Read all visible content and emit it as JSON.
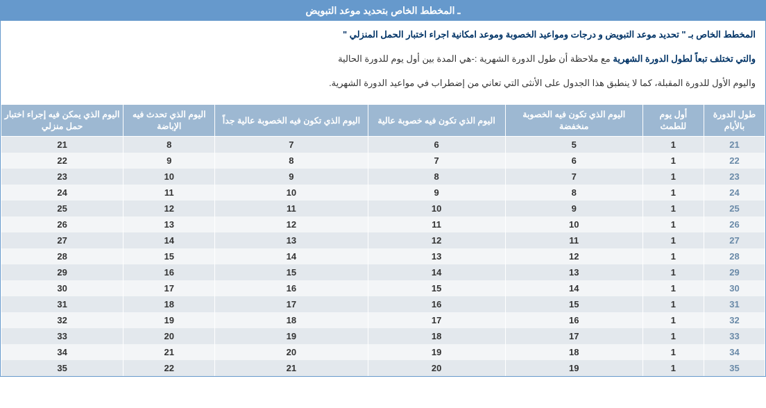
{
  "title": "ـ المخطط الخاص بتحديد موعد التبويض",
  "desc": {
    "p1_bold": "المخطط الخاص بـ \" تحديد موعد التبويض و درجات ومواعيد الخصوبة وموعد امكانية اجراء اختبار الحمل المنزلي \"",
    "p2_bold": "والتي تختلف تبعاً لطول الدورة الشهرية",
    "p2_plain": " مع ملاحظة أن طول الدورة الشهرية :-هي المدة بين أول يوم للدورة الحالية",
    "p3_plain": "واليوم الأول للدورة المقبلة، كما لا ينطبق هذا الجدول على الأنثى التي تعاني من إضطراب في مواعيد الدورة الشهرية."
  },
  "headers": [
    "طول الدورة بالأيام",
    "أول يوم للطمث",
    "اليوم الذي تكون فيه الخصوبة منخفضة",
    "اليوم الذي تكون فيه خصوبة عالية",
    "اليوم الذي تكون فيه الخصوبة عالية جداً",
    "اليوم الذي تحدث فيه الإباضة",
    "اليوم الذي يمكن فيه إجراء اختبار حمل منزلي"
  ],
  "rows": [
    [
      "21",
      "1",
      "5",
      "6",
      "7",
      "8",
      "21"
    ],
    [
      "22",
      "1",
      "6",
      "7",
      "8",
      "9",
      "22"
    ],
    [
      "23",
      "1",
      "7",
      "8",
      "9",
      "10",
      "23"
    ],
    [
      "24",
      "1",
      "8",
      "9",
      "10",
      "11",
      "24"
    ],
    [
      "25",
      "1",
      "9",
      "10",
      "11",
      "12",
      "25"
    ],
    [
      "26",
      "1",
      "10",
      "11",
      "12",
      "13",
      "26"
    ],
    [
      "27",
      "1",
      "11",
      "12",
      "13",
      "14",
      "27"
    ],
    [
      "28",
      "1",
      "12",
      "13",
      "14",
      "15",
      "28"
    ],
    [
      "29",
      "1",
      "13",
      "14",
      "15",
      "16",
      "29"
    ],
    [
      "30",
      "1",
      "14",
      "15",
      "16",
      "17",
      "30"
    ],
    [
      "31",
      "1",
      "15",
      "16",
      "17",
      "18",
      "31"
    ],
    [
      "32",
      "1",
      "16",
      "17",
      "18",
      "19",
      "32"
    ],
    [
      "33",
      "1",
      "17",
      "18",
      "19",
      "20",
      "33"
    ],
    [
      "34",
      "1",
      "18",
      "19",
      "20",
      "21",
      "34"
    ],
    [
      "35",
      "1",
      "19",
      "20",
      "21",
      "22",
      "35"
    ]
  ],
  "style": {
    "title_bg": "#6699cc",
    "title_color": "#ffffff",
    "header_bg": "#9db8d2",
    "header_color": "#ffffff",
    "row_odd_bg": "#e3e8ed",
    "row_even_bg": "#f3f5f7",
    "cycle_col_color": "#6a8aa8",
    "desc_bold_color": "#003366",
    "desc_plain_color": "#333333",
    "border_color": "#6699cc"
  }
}
